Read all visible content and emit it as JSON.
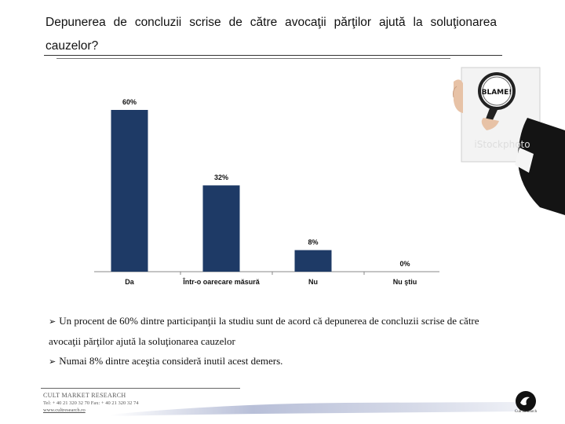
{
  "slide": {
    "title": "Depunerea de concluzii scrise de către avocaţii părţilor ajută la soluţionarea cauzelor?"
  },
  "chart_data": {
    "type": "bar",
    "categories": [
      "Da",
      "Într-o oarecare măsură",
      "Nu",
      "Nu ştiu"
    ],
    "values": [
      60,
      32,
      8,
      0
    ],
    "data_labels": [
      "60%",
      "32%",
      "8%",
      "0%"
    ],
    "ylim": [
      0,
      60
    ],
    "grid": false,
    "bar_color": "#1e3a66"
  },
  "image": {
    "sign_text": "BLAME!",
    "watermark": "iStockphoto"
  },
  "bullets": [
    {
      "line1": "Un procent de 60% dintre participanţii la studiu sunt de acord că depunerea de concluzii scrise de către",
      "line2": "avocaţii părţilor ajută la soluţionarea cauzelor"
    },
    {
      "line1": "Numai 8% dintre aceştia consideră inutil acest demers."
    }
  ],
  "footer": {
    "company": "CULT MARKET RESEARCH",
    "contact": "Tel: + 40 21 320 32 70  Fax: + 40 21 320 32 74",
    "website": "www.cultresearch.ro",
    "logo_text": "Cult Research"
  },
  "colors": {
    "bar": "#1e3a66",
    "text": "#111111"
  }
}
